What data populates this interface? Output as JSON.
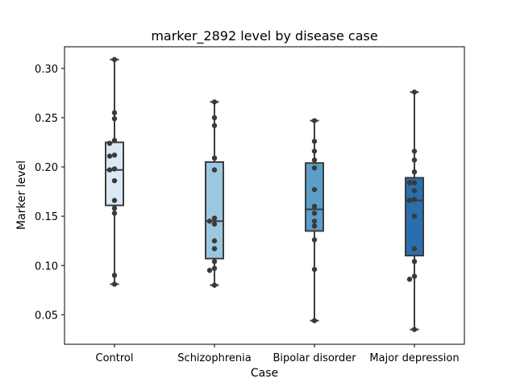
{
  "chart_data": {
    "type": "box",
    "title": "marker_2892 level by disease case",
    "xlabel": "Case",
    "ylabel": "Marker level",
    "ylim": [
      0.02,
      0.322
    ],
    "yticks": [
      "0.05",
      "0.10",
      "0.15",
      "0.20",
      "0.25",
      "0.30"
    ],
    "grid": false,
    "categories": [
      "Control",
      "Schizophrenia",
      "Bipolar disorder",
      "Major depression"
    ],
    "box_colors": [
      "#dbe9f6",
      "#9ac8e0",
      "#5a9ec9",
      "#2a6fad"
    ],
    "series": [
      {
        "category": "Control",
        "min": 0.081,
        "q1": 0.161,
        "median": 0.197,
        "q3": 0.225,
        "max": 0.309,
        "points": [
          0.309,
          0.255,
          0.249,
          0.227,
          0.224,
          0.212,
          0.211,
          0.198,
          0.197,
          0.186,
          0.166,
          0.158,
          0.153,
          0.09,
          0.081
        ]
      },
      {
        "category": "Schizophrenia",
        "min": 0.08,
        "q1": 0.107,
        "median": 0.145,
        "q3": 0.205,
        "max": 0.266,
        "points": [
          0.266,
          0.25,
          0.242,
          0.209,
          0.197,
          0.148,
          0.145,
          0.142,
          0.125,
          0.117,
          0.104,
          0.097,
          0.095,
          0.08
        ]
      },
      {
        "category": "Bipolar disorder",
        "min": 0.044,
        "q1": 0.135,
        "median": 0.157,
        "q3": 0.204,
        "max": 0.247,
        "points": [
          0.247,
          0.226,
          0.216,
          0.207,
          0.199,
          0.177,
          0.16,
          0.153,
          0.145,
          0.14,
          0.126,
          0.096,
          0.044
        ]
      },
      {
        "category": "Major depression",
        "min": 0.035,
        "q1": 0.11,
        "median": 0.166,
        "q3": 0.189,
        "max": 0.276,
        "points": [
          0.276,
          0.216,
          0.207,
          0.195,
          0.184,
          0.184,
          0.176,
          0.167,
          0.166,
          0.15,
          0.117,
          0.104,
          0.089,
          0.086,
          0.035
        ]
      }
    ]
  }
}
